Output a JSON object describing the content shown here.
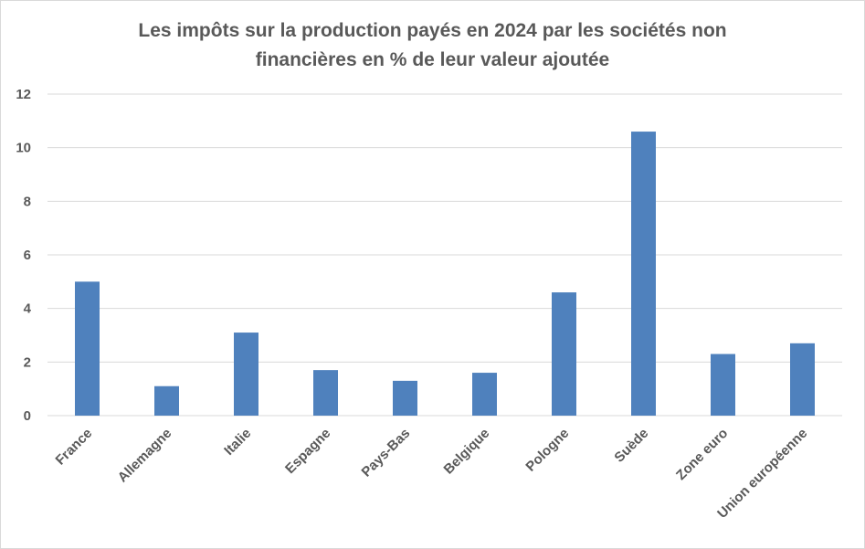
{
  "chart_data": {
    "type": "bar",
    "title_line1": "Les impôts sur la production  payés en 2024 par les sociétés non",
    "title_line2": "financières en % de leur valeur ajoutée",
    "categories": [
      "France",
      "Allemagne",
      "Italie",
      "Espagne",
      "Pays-Bas",
      "Belgique",
      "Pologne",
      "Suède",
      "Zone euro",
      "Union européenne"
    ],
    "values": [
      5.0,
      1.1,
      3.1,
      1.7,
      1.3,
      1.6,
      4.6,
      10.6,
      2.3,
      2.7
    ],
    "ylim": [
      0,
      12
    ],
    "yticks": [
      0,
      2,
      4,
      6,
      8,
      10,
      12
    ],
    "grid": true,
    "bar_color": "#4f81bd",
    "grid_color": "#d9d9d9",
    "text_color": "#595959"
  }
}
